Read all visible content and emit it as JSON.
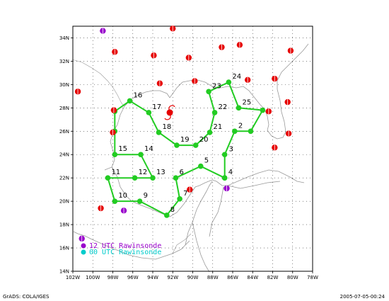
{
  "axes": {
    "lon_labels": [
      "102W",
      "100W",
      "98W",
      "96W",
      "94W",
      "92W",
      "90W",
      "88W",
      "86W",
      "84W",
      "82W",
      "80W",
      "78W"
    ],
    "lat_labels": [
      "14N",
      "16N",
      "18N",
      "20N",
      "22N",
      "24N",
      "26N",
      "28N",
      "30N",
      "32N",
      "34N"
    ],
    "lon_min": -102,
    "lon_max": -78,
    "lat_min": 14,
    "lat_max": 35
  },
  "flight_track": {
    "color": "#22cc22",
    "points": [
      {
        "label": "",
        "lon": -86.8,
        "lat": 22.0
      },
      {
        "label": "",
        "lon": -86.8,
        "lat": 24.0
      },
      {
        "label": "2",
        "lon": -85.8,
        "lat": 26.0
      },
      {
        "label": "",
        "lon": -84.2,
        "lat": 26.0
      },
      {
        "label": "",
        "lon": -83.0,
        "lat": 27.8
      },
      {
        "label": "25",
        "lon": -85.4,
        "lat": 28.0
      },
      {
        "label": "24",
        "lon": -86.4,
        "lat": 30.2
      },
      {
        "label": "23",
        "lon": -88.4,
        "lat": 29.4
      },
      {
        "label": "22",
        "lon": -87.8,
        "lat": 27.6
      },
      {
        "label": "21",
        "lon": -88.3,
        "lat": 25.9
      },
      {
        "label": "20",
        "lon": -89.7,
        "lat": 24.8
      },
      {
        "label": "19",
        "lon": -91.6,
        "lat": 24.8
      },
      {
        "label": "18",
        "lon": -93.4,
        "lat": 25.9
      },
      {
        "label": "17",
        "lon": -94.4,
        "lat": 27.6
      },
      {
        "label": "16",
        "lon": -96.3,
        "lat": 28.6
      },
      {
        "label": "",
        "lon": -97.8,
        "lat": 27.7
      },
      {
        "label": "",
        "lon": -97.8,
        "lat": 26.0
      },
      {
        "label": "15",
        "lon": -97.8,
        "lat": 24.0
      },
      {
        "label": "14",
        "lon": -95.2,
        "lat": 24.0
      },
      {
        "label": "13",
        "lon": -94.0,
        "lat": 22.0
      },
      {
        "label": "12",
        "lon": -95.8,
        "lat": 22.0
      },
      {
        "label": "11",
        "lon": -98.5,
        "lat": 22.0
      },
      {
        "label": "10",
        "lon": -97.8,
        "lat": 20.0
      },
      {
        "label": "9",
        "lon": -95.3,
        "lat": 20.0
      },
      {
        "label": "8",
        "lon": -92.6,
        "lat": 18.8
      },
      {
        "label": "7",
        "lon": -91.3,
        "lat": 20.2
      },
      {
        "label": "6",
        "lon": -91.7,
        "lat": 22.0
      },
      {
        "label": "5",
        "lon": -89.2,
        "lat": 23.0
      },
      {
        "label": "4",
        "lon": -86.8,
        "lat": 22.0
      }
    ],
    "label_points": [
      {
        "label": "3",
        "lon": -86.6,
        "lat": 24.4
      }
    ]
  },
  "rawinsondes": {
    "red": {
      "color": "#e60000",
      "stations": [
        [
          -92.0,
          34.8
        ],
        [
          -87.1,
          33.2
        ],
        [
          -85.3,
          33.4
        ],
        [
          -80.2,
          32.9
        ],
        [
          -97.8,
          32.8
        ],
        [
          -93.9,
          32.5
        ],
        [
          -90.4,
          32.3
        ],
        [
          -101.5,
          29.4
        ],
        [
          -93.3,
          30.1
        ],
        [
          -89.8,
          30.3
        ],
        [
          -84.5,
          30.4
        ],
        [
          -81.8,
          30.5
        ],
        [
          -80.5,
          28.5
        ],
        [
          -97.9,
          27.8
        ],
        [
          -82.4,
          27.7
        ],
        [
          -98.0,
          25.9
        ],
        [
          -80.4,
          25.8
        ],
        [
          -81.8,
          24.6
        ],
        [
          -90.3,
          21.0
        ],
        [
          -99.2,
          19.4
        ]
      ]
    },
    "purple": {
      "color": "#9900cc",
      "stations": [
        [
          -99.0,
          34.6
        ],
        [
          -86.6,
          21.1
        ],
        [
          -96.9,
          19.2
        ],
        [
          -101.1,
          16.8
        ]
      ]
    }
  },
  "storm": {
    "symbol": "hurricane-symbol",
    "lon": -92.3,
    "lat": 27.6,
    "color": "#e60000"
  },
  "legend": {
    "items": [
      {
        "text": "12 UTC Rawinsonde",
        "color": "#9900cc"
      },
      {
        "text": "00 UTC Rawinsonde",
        "color": "#00cccc"
      }
    ]
  },
  "footer": {
    "left": "GrADS: COLA/IGES",
    "right": "2005-07-05-00:24"
  }
}
